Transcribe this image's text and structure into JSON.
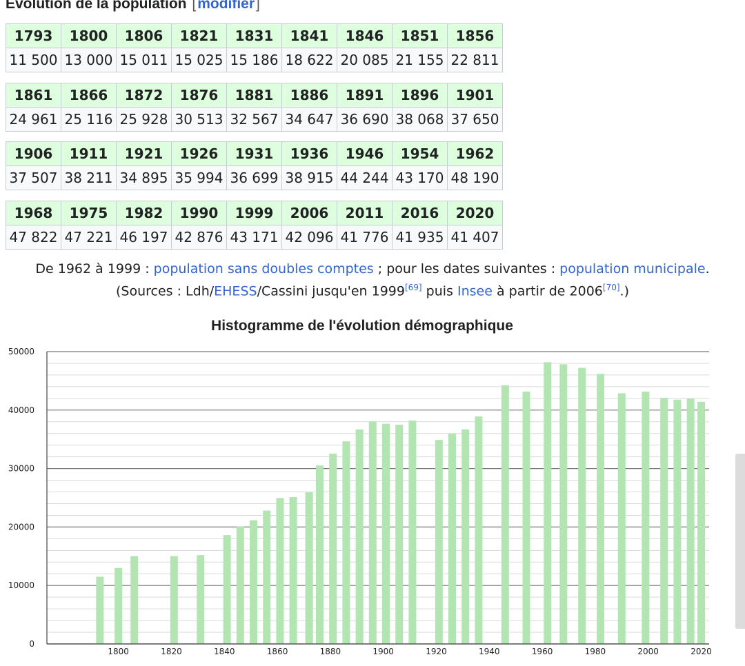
{
  "heading": {
    "title": "Évolution de la population",
    "edit_link": "modifier"
  },
  "census_tables": [
    {
      "years": [
        "1793",
        "1800",
        "1806",
        "1821",
        "1831",
        "1841",
        "1846",
        "1851",
        "1856"
      ],
      "populations": [
        "11 500",
        "13 000",
        "15 011",
        "15 025",
        "15 186",
        "18 622",
        "20 085",
        "21 155",
        "22 811"
      ]
    },
    {
      "years": [
        "1861",
        "1866",
        "1872",
        "1876",
        "1881",
        "1886",
        "1891",
        "1896",
        "1901"
      ],
      "populations": [
        "24 961",
        "25 116",
        "25 928",
        "30 513",
        "32 567",
        "34 647",
        "36 690",
        "38 068",
        "37 650"
      ]
    },
    {
      "years": [
        "1906",
        "1911",
        "1921",
        "1926",
        "1931",
        "1936",
        "1946",
        "1954",
        "1962"
      ],
      "populations": [
        "37 507",
        "38 211",
        "34 895",
        "35 994",
        "36 699",
        "38 915",
        "44 244",
        "43 170",
        "48 190"
      ]
    },
    {
      "years": [
        "1968",
        "1975",
        "1982",
        "1990",
        "1999",
        "2006",
        "2011",
        "2016",
        "2020"
      ],
      "populations": [
        "47 822",
        "47 221",
        "46 197",
        "42 876",
        "43 171",
        "42 096",
        "41 776",
        "41 935",
        "41 407"
      ]
    }
  ],
  "notes": {
    "line1_prefix": "De 1962 à 1999 : ",
    "line1_link1": "population sans doubles comptes",
    "line1_middle": " ; pour les dates suivantes : ",
    "line1_link2": "population municipale",
    "line1_suffix": ".",
    "line2_prefix": "(Sources : Ldh/",
    "line2_link1": "EHESS",
    "line2_middle1": "/Cassini jusqu'en 1999",
    "line2_ref1": "[69]",
    "line2_middle2": " puis ",
    "line2_link2": "Insee",
    "line2_middle3": " à partir de 2006",
    "line2_ref2": "[70]",
    "line2_suffix": ".)"
  },
  "chart_data": {
    "type": "bar",
    "title": "Histogramme de l'évolution démographique",
    "xlabel": "",
    "ylabel": "",
    "x": [
      1793,
      1800,
      1806,
      1821,
      1831,
      1841,
      1846,
      1851,
      1856,
      1861,
      1866,
      1872,
      1876,
      1881,
      1886,
      1891,
      1896,
      1901,
      1906,
      1911,
      1921,
      1926,
      1931,
      1936,
      1946,
      1954,
      1962,
      1968,
      1975,
      1982,
      1990,
      1999,
      2006,
      2011,
      2016,
      2020
    ],
    "values": [
      11500,
      13000,
      15011,
      15025,
      15186,
      18622,
      20085,
      21155,
      22811,
      24961,
      25116,
      25928,
      30513,
      32567,
      34647,
      36690,
      38068,
      37650,
      37507,
      38211,
      34895,
      35994,
      36699,
      38915,
      44244,
      43170,
      48190,
      47822,
      47221,
      46197,
      42876,
      43171,
      42096,
      41776,
      41935,
      41407
    ],
    "xlim": [
      1773,
      2023
    ],
    "ylim": [
      0,
      50000
    ],
    "x_ticks": [
      1800,
      1820,
      1840,
      1860,
      1880,
      1900,
      1920,
      1940,
      1960,
      1980,
      2000,
      2020
    ],
    "y_ticks": [
      0,
      10000,
      20000,
      30000,
      40000,
      50000
    ],
    "bar_color": "#b2e5b2",
    "grid": true,
    "legend": "none"
  }
}
